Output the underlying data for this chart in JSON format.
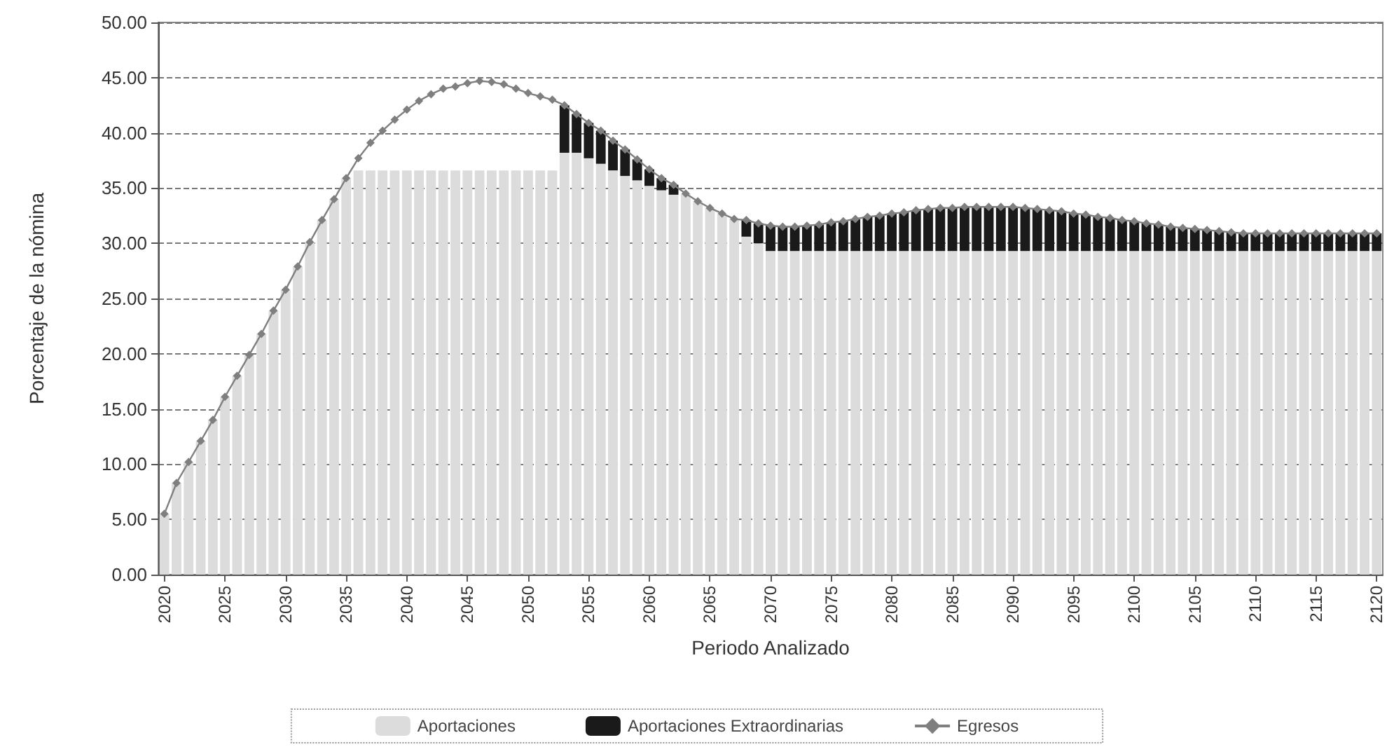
{
  "chart_data": {
    "type": "bar",
    "stacked": true,
    "xlabel": "Periodo Analizado",
    "ylabel": "Porcentaje de la nómina",
    "categories": [
      "2020",
      null,
      null,
      null,
      null,
      "2025",
      null,
      null,
      null,
      null,
      "2030",
      null,
      null,
      null,
      null,
      "2035",
      null,
      null,
      null,
      null,
      "2040",
      null,
      null,
      null,
      null,
      "2045",
      null,
      null,
      null,
      null,
      "2050",
      null,
      null,
      null,
      null,
      "2055",
      null,
      null,
      null,
      null,
      "2060",
      null,
      null,
      null,
      null,
      "2065",
      null,
      null,
      null,
      null,
      "2070",
      null,
      null,
      null,
      null,
      "2075",
      null,
      null,
      null,
      null,
      "2080",
      null,
      null,
      null,
      null,
      "2085",
      null,
      null,
      null,
      null,
      "2090",
      null,
      null,
      null,
      null,
      "2095",
      null,
      null,
      null,
      null,
      "2100",
      null,
      null,
      null,
      null,
      "2105",
      null,
      null,
      null,
      null,
      "2110",
      null,
      null,
      null,
      null,
      "2115",
      null,
      null,
      null,
      null,
      "2120"
    ],
    "series": [
      {
        "name": "Aportaciones",
        "color": "#dcdcdc",
        "values": [
          5.5,
          8.3,
          10.2,
          12.1,
          14.0,
          16.1,
          18.0,
          19.9,
          21.8,
          23.9,
          25.8,
          27.9,
          30.1,
          32.1,
          34.0,
          35.9,
          36.6,
          36.6,
          36.6,
          36.6,
          36.6,
          36.6,
          36.6,
          36.6,
          36.6,
          36.6,
          36.6,
          36.6,
          36.6,
          36.6,
          36.6,
          36.6,
          36.6,
          38.2,
          38.2,
          37.7,
          37.2,
          36.6,
          36.1,
          35.7,
          35.2,
          34.8,
          34.4,
          34.5,
          33.8,
          33.2,
          32.7,
          32.2,
          30.6,
          30.0,
          29.3,
          29.3,
          29.3,
          29.3,
          29.3,
          29.3,
          29.3,
          29.3,
          29.3,
          29.3,
          29.3,
          29.3,
          29.3,
          29.3,
          29.3,
          29.3,
          29.3,
          29.3,
          29.3,
          29.3,
          29.3,
          29.3,
          29.3,
          29.3,
          29.3,
          29.3,
          29.3,
          29.3,
          29.3,
          29.3,
          29.3,
          29.3,
          29.3,
          29.3,
          29.3,
          29.3,
          29.3,
          29.3,
          29.3,
          29.3,
          29.3,
          29.3,
          29.3,
          29.3,
          29.3,
          29.3,
          29.3,
          29.3,
          29.3,
          29.3,
          29.3
        ]
      },
      {
        "name": "Aportaciones Extraordinarias",
        "color": "#1a1a1a",
        "values": [
          null,
          null,
          null,
          null,
          null,
          null,
          null,
          null,
          null,
          null,
          null,
          null,
          null,
          null,
          null,
          null,
          null,
          null,
          null,
          null,
          null,
          null,
          null,
          null,
          null,
          null,
          null,
          null,
          null,
          null,
          null,
          null,
          null,
          4.3,
          3.5,
          3.2,
          3.0,
          2.7,
          2.4,
          1.9,
          1.5,
          1.1,
          0.9,
          null,
          null,
          null,
          null,
          null,
          1.5,
          1.8,
          2.3,
          2.2,
          2.2,
          2.3,
          2.4,
          2.6,
          2.7,
          2.9,
          3.1,
          3.2,
          3.4,
          3.5,
          3.7,
          3.8,
          3.9,
          3.9,
          4.0,
          4.0,
          4.0,
          4.0,
          4.0,
          3.9,
          3.8,
          3.7,
          3.6,
          3.4,
          3.3,
          3.1,
          3.0,
          2.8,
          2.7,
          2.5,
          2.4,
          2.2,
          2.1,
          2.0,
          1.9,
          1.8,
          1.7,
          1.6,
          1.6,
          1.6,
          1.6,
          1.6,
          1.6,
          1.6,
          1.6,
          1.6,
          1.6,
          1.6,
          1.6
        ]
      },
      {
        "name": "Egresos",
        "type": "line",
        "color": "#7f7f7f",
        "marker": "diamond",
        "values": [
          5.5,
          8.3,
          10.2,
          12.1,
          14.0,
          16.1,
          18.0,
          19.9,
          21.8,
          23.9,
          25.8,
          27.9,
          30.1,
          32.1,
          34.0,
          35.9,
          37.7,
          39.1,
          40.2,
          41.2,
          42.1,
          42.9,
          43.5,
          44.0,
          44.2,
          44.5,
          44.7,
          44.6,
          44.4,
          44.0,
          43.6,
          43.3,
          43.0,
          42.5,
          41.7,
          40.9,
          40.2,
          39.3,
          38.5,
          37.6,
          36.7,
          35.9,
          35.3,
          34.5,
          33.8,
          33.2,
          32.7,
          32.2,
          32.1,
          31.8,
          31.6,
          31.5,
          31.5,
          31.6,
          31.7,
          31.9,
          32.0,
          32.2,
          32.4,
          32.5,
          32.7,
          32.8,
          33.0,
          33.1,
          33.2,
          33.2,
          33.3,
          33.3,
          33.3,
          33.3,
          33.3,
          33.2,
          33.1,
          33.0,
          32.9,
          32.7,
          32.6,
          32.4,
          32.3,
          32.1,
          32.0,
          31.8,
          31.7,
          31.5,
          31.4,
          31.3,
          31.2,
          31.1,
          31.0,
          30.9,
          30.9,
          30.9,
          30.9,
          30.9,
          30.9,
          30.9,
          30.9,
          30.9,
          30.9,
          30.9,
          30.9
        ]
      }
    ],
    "ylim": [
      0,
      50
    ],
    "yticks": [
      {
        "value": 0,
        "label": "0.00"
      },
      {
        "value": 5,
        "label": "5.00"
      },
      {
        "value": 10,
        "label": "10.00"
      },
      {
        "value": 15,
        "label": "15.00"
      },
      {
        "value": 20,
        "label": "20.00"
      },
      {
        "value": 25,
        "label": "25.00"
      },
      {
        "value": 30,
        "label": "30.00"
      },
      {
        "value": 35,
        "label": "35.00"
      },
      {
        "value": 40,
        "label": "40.00"
      },
      {
        "value": 45,
        "label": "45.00"
      },
      {
        "value": 50,
        "label": "50.00"
      }
    ],
    "grid": "y",
    "legend": "bottom"
  }
}
